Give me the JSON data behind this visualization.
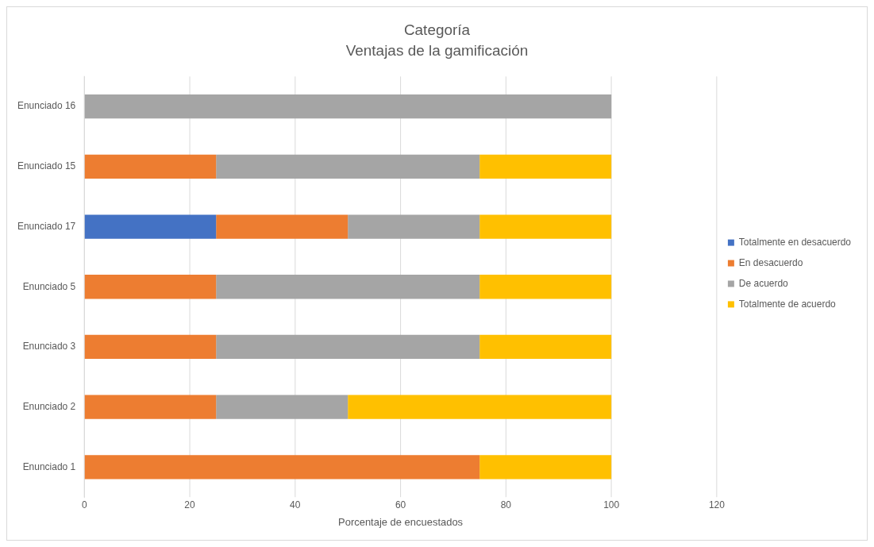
{
  "chart_data": {
    "type": "bar",
    "orientation": "horizontal",
    "stacked": true,
    "title": "Categoría",
    "subtitle": "Ventajas de la gamificación",
    "xlabel": "Porcentaje de encuestados",
    "categories": [
      "Enunciado 16",
      "Enunciado 15",
      "Enunciado 17",
      "Enunciado 5",
      "Enunciado 3",
      "Enunciado 2",
      "Enunciado 1"
    ],
    "series": [
      {
        "name": "Totalmente en desacuerdo",
        "color": "#4472c4",
        "values": [
          0,
          0,
          25,
          0,
          0,
          0,
          0
        ]
      },
      {
        "name": "En desacuerdo",
        "color": "#ed7d31",
        "values": [
          0,
          25,
          25,
          25,
          25,
          25,
          75
        ]
      },
      {
        "name": "De acuerdo",
        "color": "#a5a5a5",
        "values": [
          100,
          50,
          25,
          50,
          50,
          25,
          0
        ]
      },
      {
        "name": "Totalmente de acuerdo",
        "color": "#ffc000",
        "values": [
          0,
          25,
          25,
          25,
          25,
          50,
          25
        ]
      }
    ],
    "xlim": [
      0,
      120
    ],
    "xticks": [
      0,
      20,
      40,
      60,
      80,
      100,
      120
    ],
    "grid": "x",
    "legend": "right"
  }
}
